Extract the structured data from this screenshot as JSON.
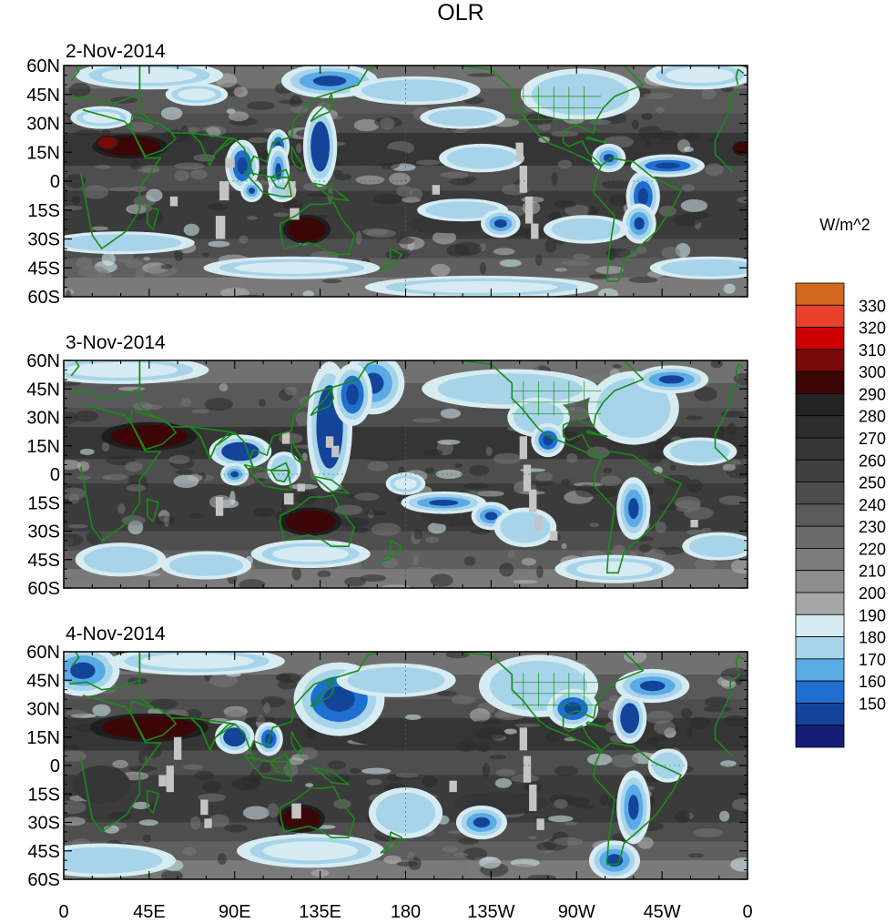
{
  "title": "OLR",
  "units": "W/m^2",
  "panels": [
    {
      "date": "2-Nov-2014"
    },
    {
      "date": "3-Nov-2014"
    },
    {
      "date": "4-Nov-2014"
    }
  ],
  "lat_labels": [
    "60N",
    "45N",
    "30N",
    "15N",
    "0",
    "15S",
    "30S",
    "45S",
    "60S"
  ],
  "lat_values": [
    60,
    45,
    30,
    15,
    0,
    -15,
    -30,
    -45,
    -60
  ],
  "lon_labels": [
    "0",
    "45E",
    "90E",
    "135E",
    "180",
    "135W",
    "90W",
    "45W",
    "0"
  ],
  "lon_values": [
    0,
    45,
    90,
    135,
    180,
    225,
    270,
    315,
    360
  ],
  "colorbar": {
    "levels": [
      "330",
      "320",
      "310",
      "300",
      "290",
      "280",
      "270",
      "260",
      "250",
      "240",
      "230",
      "220",
      "210",
      "200",
      "190",
      "180",
      "170",
      "160",
      "150"
    ],
    "colors": [
      "#d2691e",
      "#e8402a",
      "#cc0000",
      "#7a0a0a",
      "#3c0606",
      "#232323",
      "#2c2c2c",
      "#353535",
      "#404040",
      "#4c4c4c",
      "#5a5a5a",
      "#6a6a6a",
      "#7c7c7c",
      "#8e8e8e",
      "#a6a6a6",
      "#d6ecf2",
      "#a8d4ea",
      "#5aaae6",
      "#1e6fd0",
      "#14449a",
      "#141e74"
    ]
  },
  "chart_data": [
    {
      "type": "heatmap",
      "title": "2-Nov-2014",
      "variable": "OLR",
      "units": "W/m^2",
      "lat_range": [
        -60,
        60
      ],
      "lon_range": [
        0,
        360
      ],
      "blobs": [
        {
          "lon": 35,
          "lat": 18,
          "rx": 16,
          "ry": 5,
          "level": 300
        },
        {
          "lon": 23,
          "lat": 20,
          "rx": 5,
          "ry": 3,
          "level": 310
        },
        {
          "lon": 128,
          "lat": -25,
          "rx": 10,
          "ry": 6,
          "level": 300
        },
        {
          "lon": 357,
          "lat": 17,
          "rx": 4,
          "ry": 3,
          "level": 300
        },
        {
          "lon": 163,
          "lat": 13,
          "rx": 20,
          "ry": 4,
          "level": 270
        },
        {
          "lon": 205,
          "lat": -22,
          "rx": 24,
          "ry": 5,
          "level": 270
        },
        {
          "lon": 220,
          "lat": 12,
          "rx": 15,
          "ry": 4,
          "level": 270
        },
        {
          "lon": 135,
          "lat": 18,
          "rx": 5,
          "ry": 13,
          "level": 150
        },
        {
          "lon": 113,
          "lat": 18,
          "rx": 3,
          "ry": 5,
          "level": 160
        },
        {
          "lon": 113,
          "lat": 5,
          "rx": 3,
          "ry": 8,
          "level": 170
        },
        {
          "lon": 94,
          "lat": 8,
          "rx": 5,
          "ry": 8,
          "level": 160
        },
        {
          "lon": 99,
          "lat": -5,
          "rx": 3,
          "ry": 3,
          "level": 170
        },
        {
          "lon": 115,
          "lat": -5,
          "rx": 4,
          "ry": 3,
          "level": 180
        },
        {
          "lon": 140,
          "lat": 52,
          "rx": 16,
          "ry": 5,
          "level": 170
        },
        {
          "lon": 185,
          "lat": 47,
          "rx": 22,
          "ry": 4,
          "level": 180
        },
        {
          "lon": 210,
          "lat": 33,
          "rx": 14,
          "ry": 3,
          "level": 180
        },
        {
          "lon": 220,
          "lat": 12,
          "rx": 14,
          "ry": 4,
          "level": 180
        },
        {
          "lon": 272,
          "lat": 45,
          "rx": 20,
          "ry": 8,
          "level": 180
        },
        {
          "lon": 287,
          "lat": 12,
          "rx": 5,
          "ry": 4,
          "level": 170
        },
        {
          "lon": 318,
          "lat": 8,
          "rx": 12,
          "ry": 3,
          "level": 160
        },
        {
          "lon": 305,
          "lat": -8,
          "rx": 5,
          "ry": 8,
          "level": 160
        },
        {
          "lon": 303,
          "lat": -22,
          "rx": 5,
          "ry": 6,
          "level": 170
        },
        {
          "lon": 210,
          "lat": -15,
          "rx": 15,
          "ry": 3,
          "level": 180
        },
        {
          "lon": 230,
          "lat": -22,
          "rx": 6,
          "ry": 4,
          "level": 170
        },
        {
          "lon": 275,
          "lat": -25,
          "rx": 14,
          "ry": 4,
          "level": 180
        },
        {
          "lon": 30,
          "lat": -32,
          "rx": 25,
          "ry": 3,
          "level": 180
        },
        {
          "lon": 120,
          "lat": -45,
          "rx": 30,
          "ry": 3,
          "level": 190
        },
        {
          "lon": 340,
          "lat": -45,
          "rx": 20,
          "ry": 3,
          "level": 180
        },
        {
          "lon": 220,
          "lat": -55,
          "rx": 40,
          "ry": 3,
          "level": 190
        },
        {
          "lon": 45,
          "lat": 55,
          "rx": 25,
          "ry": 4,
          "level": 190
        },
        {
          "lon": 335,
          "lat": 55,
          "rx": 18,
          "ry": 4,
          "level": 190
        },
        {
          "lon": 20,
          "lat": 33,
          "rx": 10,
          "ry": 3,
          "level": 190
        },
        {
          "lon": 70,
          "lat": 45,
          "rx": 10,
          "ry": 3,
          "level": 190
        }
      ],
      "missing": [
        {
          "lon": 85,
          "lat": 12,
          "w": 5,
          "h": 5
        },
        {
          "lon": 82,
          "lat": 0,
          "w": 5,
          "h": 10
        },
        {
          "lon": 80,
          "lat": -18,
          "w": 5,
          "h": 12
        },
        {
          "lon": 117,
          "lat": 0,
          "w": 5,
          "h": 8
        },
        {
          "lon": 119,
          "lat": -14,
          "w": 5,
          "h": 6
        },
        {
          "lon": 56,
          "lat": -8,
          "w": 4,
          "h": 5
        },
        {
          "lon": 238,
          "lat": 20,
          "w": 4,
          "h": 10
        },
        {
          "lon": 240,
          "lat": 8,
          "w": 4,
          "h": 14
        },
        {
          "lon": 243,
          "lat": -8,
          "w": 4,
          "h": 14
        },
        {
          "lon": 246,
          "lat": -22,
          "w": 4,
          "h": 8
        },
        {
          "lon": 194,
          "lat": -2,
          "w": 4,
          "h": 5
        }
      ]
    },
    {
      "type": "heatmap",
      "title": "3-Nov-2014",
      "variable": "OLR",
      "units": "W/m^2",
      "lat_range": [
        -60,
        60
      ],
      "lon_range": [
        0,
        360
      ],
      "blobs": [
        {
          "lon": 45,
          "lat": 20,
          "rx": 20,
          "ry": 6,
          "level": 300
        },
        {
          "lon": 130,
          "lat": -25,
          "rx": 13,
          "ry": 6,
          "level": 300
        },
        {
          "lon": 170,
          "lat": 12,
          "rx": 20,
          "ry": 5,
          "level": 270
        },
        {
          "lon": 210,
          "lat": -22,
          "rx": 22,
          "ry": 5,
          "level": 270
        },
        {
          "lon": 93,
          "lat": 12,
          "rx": 10,
          "ry": 5,
          "level": 150
        },
        {
          "lon": 140,
          "lat": 25,
          "rx": 7,
          "ry": 22,
          "level": 150
        },
        {
          "lon": 163,
          "lat": 48,
          "rx": 10,
          "ry": 10,
          "level": 170
        },
        {
          "lon": 152,
          "lat": 42,
          "rx": 6,
          "ry": 10,
          "level": 160
        },
        {
          "lon": 90,
          "lat": 0,
          "rx": 4,
          "ry": 3,
          "level": 170
        },
        {
          "lon": 116,
          "lat": 3,
          "rx": 5,
          "ry": 5,
          "level": 180
        },
        {
          "lon": 235,
          "lat": 45,
          "rx": 30,
          "ry": 6,
          "level": 180
        },
        {
          "lon": 250,
          "lat": 30,
          "rx": 10,
          "ry": 6,
          "level": 180
        },
        {
          "lon": 255,
          "lat": 18,
          "rx": 5,
          "ry": 5,
          "level": 160
        },
        {
          "lon": 300,
          "lat": 35,
          "rx": 15,
          "ry": 12,
          "level": 180
        },
        {
          "lon": 320,
          "lat": 50,
          "rx": 12,
          "ry": 4,
          "level": 170
        },
        {
          "lon": 335,
          "lat": 12,
          "rx": 12,
          "ry": 4,
          "level": 180
        },
        {
          "lon": 200,
          "lat": -15,
          "rx": 14,
          "ry": 3,
          "level": 170
        },
        {
          "lon": 225,
          "lat": -22,
          "rx": 6,
          "ry": 4,
          "level": 170
        },
        {
          "lon": 243,
          "lat": -28,
          "rx": 10,
          "ry": 6,
          "level": 180
        },
        {
          "lon": 300,
          "lat": -18,
          "rx": 5,
          "ry": 10,
          "level": 170
        },
        {
          "lon": 345,
          "lat": -38,
          "rx": 12,
          "ry": 4,
          "level": 180
        },
        {
          "lon": 30,
          "lat": -45,
          "rx": 15,
          "ry": 5,
          "level": 180
        },
        {
          "lon": 75,
          "lat": -48,
          "rx": 15,
          "ry": 4,
          "level": 180
        },
        {
          "lon": 130,
          "lat": -42,
          "rx": 20,
          "ry": 4,
          "level": 190
        },
        {
          "lon": 290,
          "lat": -50,
          "rx": 20,
          "ry": 4,
          "level": 190
        },
        {
          "lon": 30,
          "lat": 55,
          "rx": 30,
          "ry": 4,
          "level": 190
        },
        {
          "lon": 180,
          "lat": -5,
          "rx": 6,
          "ry": 3,
          "level": 190
        }
      ],
      "missing": [
        {
          "lon": 80,
          "lat": -12,
          "w": 4,
          "h": 10
        },
        {
          "lon": 116,
          "lat": -10,
          "w": 5,
          "h": 6
        },
        {
          "lon": 115,
          "lat": 22,
          "w": 4,
          "h": 6
        },
        {
          "lon": 123,
          "lat": -5,
          "w": 4,
          "h": 4
        },
        {
          "lon": 138,
          "lat": 20,
          "w": 4,
          "h": 6
        },
        {
          "lon": 141,
          "lat": 15,
          "w": 4,
          "h": 6
        },
        {
          "lon": 240,
          "lat": 20,
          "w": 4,
          "h": 12
        },
        {
          "lon": 242,
          "lat": 5,
          "w": 4,
          "h": 14
        },
        {
          "lon": 245,
          "lat": -8,
          "w": 4,
          "h": 12
        },
        {
          "lon": 248,
          "lat": -22,
          "w": 4,
          "h": 8
        },
        {
          "lon": 256,
          "lat": -30,
          "w": 4,
          "h": 5
        },
        {
          "lon": 330,
          "lat": -24,
          "w": 4,
          "h": 4
        }
      ]
    },
    {
      "type": "heatmap",
      "title": "4-Nov-2014",
      "variable": "OLR",
      "units": "W/m^2",
      "lat_range": [
        -60,
        60
      ],
      "lon_range": [
        0,
        360
      ],
      "blobs": [
        {
          "lon": 45,
          "lat": 20,
          "rx": 25,
          "ry": 6,
          "level": 300
        },
        {
          "lon": 125,
          "lat": -28,
          "rx": 10,
          "ry": 6,
          "level": 300
        },
        {
          "lon": 175,
          "lat": 15,
          "rx": 25,
          "ry": 5,
          "level": 270
        },
        {
          "lon": 230,
          "lat": -20,
          "rx": 25,
          "ry": 6,
          "level": 270
        },
        {
          "lon": 20,
          "lat": -10,
          "rx": 15,
          "ry": 10,
          "level": 270
        },
        {
          "lon": 90,
          "lat": 15,
          "rx": 6,
          "ry": 5,
          "level": 150
        },
        {
          "lon": 108,
          "lat": 14,
          "rx": 4,
          "ry": 5,
          "level": 160
        },
        {
          "lon": 145,
          "lat": 35,
          "rx": 15,
          "ry": 12,
          "level": 160
        },
        {
          "lon": 175,
          "lat": 45,
          "rx": 20,
          "ry": 5,
          "level": 180
        },
        {
          "lon": 250,
          "lat": 42,
          "rx": 20,
          "ry": 10,
          "level": 180
        },
        {
          "lon": 268,
          "lat": 30,
          "rx": 8,
          "ry": 6,
          "level": 160
        },
        {
          "lon": 298,
          "lat": 25,
          "rx": 5,
          "ry": 8,
          "level": 150
        },
        {
          "lon": 310,
          "lat": 42,
          "rx": 12,
          "ry": 5,
          "level": 170
        },
        {
          "lon": 318,
          "lat": 0,
          "rx": 6,
          "ry": 5,
          "level": 180
        },
        {
          "lon": 300,
          "lat": -22,
          "rx": 5,
          "ry": 12,
          "level": 170
        },
        {
          "lon": 290,
          "lat": -50,
          "rx": 8,
          "ry": 6,
          "level": 170
        },
        {
          "lon": 220,
          "lat": -30,
          "rx": 8,
          "ry": 5,
          "level": 170
        },
        {
          "lon": 180,
          "lat": -25,
          "rx": 12,
          "ry": 8,
          "level": 180
        },
        {
          "lon": 20,
          "lat": -50,
          "rx": 25,
          "ry": 5,
          "level": 180
        },
        {
          "lon": 130,
          "lat": -45,
          "rx": 25,
          "ry": 5,
          "level": 190
        },
        {
          "lon": 10,
          "lat": 50,
          "rx": 12,
          "ry": 8,
          "level": 170
        },
        {
          "lon": 70,
          "lat": 55,
          "rx": 30,
          "ry": 4,
          "level": 190
        }
      ],
      "missing": [
        {
          "lon": 58,
          "lat": 15,
          "w": 4,
          "h": 12
        },
        {
          "lon": 54,
          "lat": 0,
          "w": 4,
          "h": 14
        },
        {
          "lon": 50,
          "lat": -5,
          "w": 4,
          "h": 6
        },
        {
          "lon": 72,
          "lat": -18,
          "w": 4,
          "h": 8
        },
        {
          "lon": 74,
          "lat": -28,
          "w": 4,
          "h": 5
        },
        {
          "lon": 240,
          "lat": 20,
          "w": 4,
          "h": 12
        },
        {
          "lon": 242,
          "lat": 5,
          "w": 4,
          "h": 14
        },
        {
          "lon": 245,
          "lat": -10,
          "w": 4,
          "h": 14
        },
        {
          "lon": 249,
          "lat": -28,
          "w": 4,
          "h": 6
        },
        {
          "lon": 203,
          "lat": -8,
          "w": 4,
          "h": 6
        },
        {
          "lon": 120,
          "lat": -20,
          "w": 5,
          "h": 8
        }
      ]
    }
  ]
}
